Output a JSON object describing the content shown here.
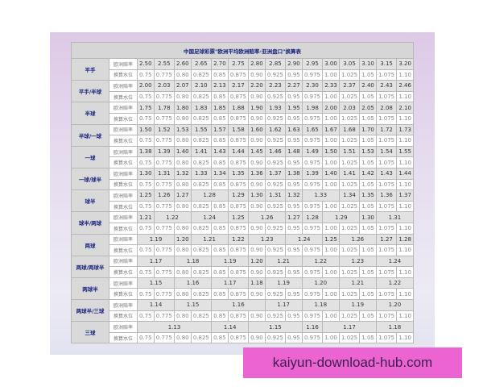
{
  "title": "中国足球彩票\"欧洲平均欧洲赔率-亚洲盘口\"换算表",
  "odds_label": "欧洲赔率",
  "water_label": "换算水位",
  "water_values": [
    "0.75",
    "0.775",
    "0.80",
    "0.825",
    "0.85",
    "0.875",
    "0.90",
    "0.925",
    "0.95",
    "0.975",
    "1.00",
    "1.025",
    "1.05",
    "1.075",
    "1.10"
  ],
  "rows": [
    {
      "handicap": "平手",
      "odds": [
        [
          "2.50",
          1
        ],
        [
          "2.55",
          1
        ],
        [
          "2.60",
          1
        ],
        [
          "2.65",
          1
        ],
        [
          "2.70",
          1
        ],
        [
          "2.75",
          1
        ],
        [
          "2.80",
          1
        ],
        [
          "2.85",
          1
        ],
        [
          "2.90",
          1
        ],
        [
          "2.95",
          1
        ],
        [
          "3.00",
          1
        ],
        [
          "3.05",
          1
        ],
        [
          "3.10",
          1
        ],
        [
          "3.15",
          1
        ],
        [
          "3.20",
          1
        ]
      ]
    },
    {
      "handicap": "平手/半球",
      "odds": [
        [
          "2.00",
          1
        ],
        [
          "2.03",
          1
        ],
        [
          "2.07",
          1
        ],
        [
          "2.10",
          1
        ],
        [
          "2.13",
          1
        ],
        [
          "2.17",
          1
        ],
        [
          "2.20",
          1
        ],
        [
          "2.23",
          1
        ],
        [
          "2.27",
          1
        ],
        [
          "2.30",
          1
        ],
        [
          "2.33",
          1
        ],
        [
          "2.37",
          1
        ],
        [
          "2.40",
          1
        ],
        [
          "2.43",
          1
        ],
        [
          "2.46",
          1
        ]
      ]
    },
    {
      "handicap": "半球",
      "odds": [
        [
          "1.75",
          1
        ],
        [
          "1.78",
          1
        ],
        [
          "1.80",
          1
        ],
        [
          "1.83",
          1
        ],
        [
          "1.85",
          1
        ],
        [
          "1.88",
          1
        ],
        [
          "1.90",
          1
        ],
        [
          "1.93",
          1
        ],
        [
          "1.95",
          1
        ],
        [
          "1.98",
          1
        ],
        [
          "2.00",
          1
        ],
        [
          "2.03",
          1
        ],
        [
          "2.05",
          1
        ],
        [
          "2.08",
          1
        ],
        [
          "2.10",
          1
        ]
      ]
    },
    {
      "handicap": "半球/一球",
      "odds": [
        [
          "1.50",
          1
        ],
        [
          "1.52",
          1
        ],
        [
          "1.53",
          1
        ],
        [
          "1.55",
          1
        ],
        [
          "1.57",
          1
        ],
        [
          "1.58",
          1
        ],
        [
          "1.60",
          1
        ],
        [
          "1.62",
          1
        ],
        [
          "1.63",
          1
        ],
        [
          "1.65",
          1
        ],
        [
          "1.67",
          1
        ],
        [
          "1.68",
          1
        ],
        [
          "1.70",
          1
        ],
        [
          "1.72",
          1
        ],
        [
          "1.73",
          1
        ]
      ]
    },
    {
      "handicap": "一球",
      "odds": [
        [
          "1.38",
          1
        ],
        [
          "1.39",
          1
        ],
        [
          "1.40",
          1
        ],
        [
          "1.41",
          1
        ],
        [
          "1.43",
          1
        ],
        [
          "1.44",
          1
        ],
        [
          "1.45",
          1
        ],
        [
          "1.46",
          1
        ],
        [
          "1.48",
          1
        ],
        [
          "1.49",
          1
        ],
        [
          "1.50",
          1
        ],
        [
          "1.51",
          1
        ],
        [
          "1.53",
          1
        ],
        [
          "1.54",
          1
        ],
        [
          "1.55",
          1
        ]
      ]
    },
    {
      "handicap": "一球/球半",
      "odds": [
        [
          "1.30",
          1
        ],
        [
          "1.31",
          1
        ],
        [
          "1.32",
          1
        ],
        [
          "1.33",
          1
        ],
        [
          "1.34",
          1
        ],
        [
          "1.35",
          1
        ],
        [
          "1.36",
          1
        ],
        [
          "1.37",
          1
        ],
        [
          "1.38",
          1
        ],
        [
          "1.39",
          1
        ],
        [
          "1.40",
          1
        ],
        [
          "1.41",
          1
        ],
        [
          "1.42",
          1
        ],
        [
          "1.43",
          1
        ],
        [
          "1.44",
          1
        ]
      ]
    },
    {
      "handicap": "球半",
      "odds": [
        [
          "1.25",
          1
        ],
        [
          "1.26",
          1
        ],
        [
          "1.27",
          1
        ],
        [
          "1.28",
          2
        ],
        [
          "1.29",
          1
        ],
        [
          "1.30",
          1
        ],
        [
          "1.31",
          1
        ],
        [
          "1.32",
          1
        ],
        [
          "1.33",
          2
        ],
        [
          "1.34",
          1
        ],
        [
          "1.35",
          1
        ],
        [
          "1.36",
          1
        ],
        [
          "1.37",
          1
        ]
      ]
    },
    {
      "handicap": "球半/两球",
      "odds": [
        [
          "1.21",
          1
        ],
        [
          "1.22",
          2
        ],
        [
          "1.24",
          2
        ],
        [
          "1.25",
          1
        ],
        [
          "1.26",
          2
        ],
        [
          "1.27",
          1
        ],
        [
          "1.28",
          1
        ],
        [
          "1.29",
          2
        ],
        [
          "1.30",
          1
        ],
        [
          "1.31",
          2
        ]
      ]
    },
    {
      "handicap": "两球",
      "odds": [
        [
          "1.19",
          2
        ],
        [
          "1.20",
          1
        ],
        [
          "1.21",
          2
        ],
        [
          "1.22",
          1
        ],
        [
          "1.23",
          2
        ],
        [
          "1.24",
          2
        ],
        [
          "1.25",
          1
        ],
        [
          "1.26",
          2
        ],
        [
          "1.27",
          1
        ],
        [
          "1.28",
          1
        ]
      ]
    },
    {
      "handicap": "两球/两球半",
      "odds": [
        [
          "1.17",
          2
        ],
        [
          "1.18",
          2
        ],
        [
          "1.19",
          2
        ],
        [
          "1.20",
          1
        ],
        [
          "1.21",
          2
        ],
        [
          "1.22",
          2
        ],
        [
          "1.23",
          2
        ],
        [
          "1.24",
          2
        ]
      ]
    },
    {
      "handicap": "两球半",
      "odds": [
        [
          "1.15",
          2
        ],
        [
          "1.16",
          2
        ],
        [
          "1.17",
          2
        ],
        [
          "1.18",
          1
        ],
        [
          "1.19",
          2
        ],
        [
          "1.20",
          2
        ],
        [
          "1.21",
          2
        ],
        [
          "1.22",
          2
        ]
      ]
    },
    {
      "handicap": "两球半/三球",
      "odds": [
        [
          "1.14",
          2
        ],
        [
          "1.15",
          2
        ],
        [
          "1.16",
          3
        ],
        [
          "1.17",
          2
        ],
        [
          "1.18",
          2
        ],
        [
          "1.19",
          2
        ],
        [
          "1.20",
          2
        ]
      ]
    },
    {
      "handicap": "三球",
      "odds": [
        [
          "1.13",
          4
        ],
        [
          "1.14",
          2
        ],
        [
          "1.15",
          3
        ],
        [
          "1.16",
          1
        ],
        [
          "1.17",
          3
        ],
        [
          "1.18",
          2
        ]
      ]
    }
  ],
  "watermark": "kaiyun-download-hub.com"
}
